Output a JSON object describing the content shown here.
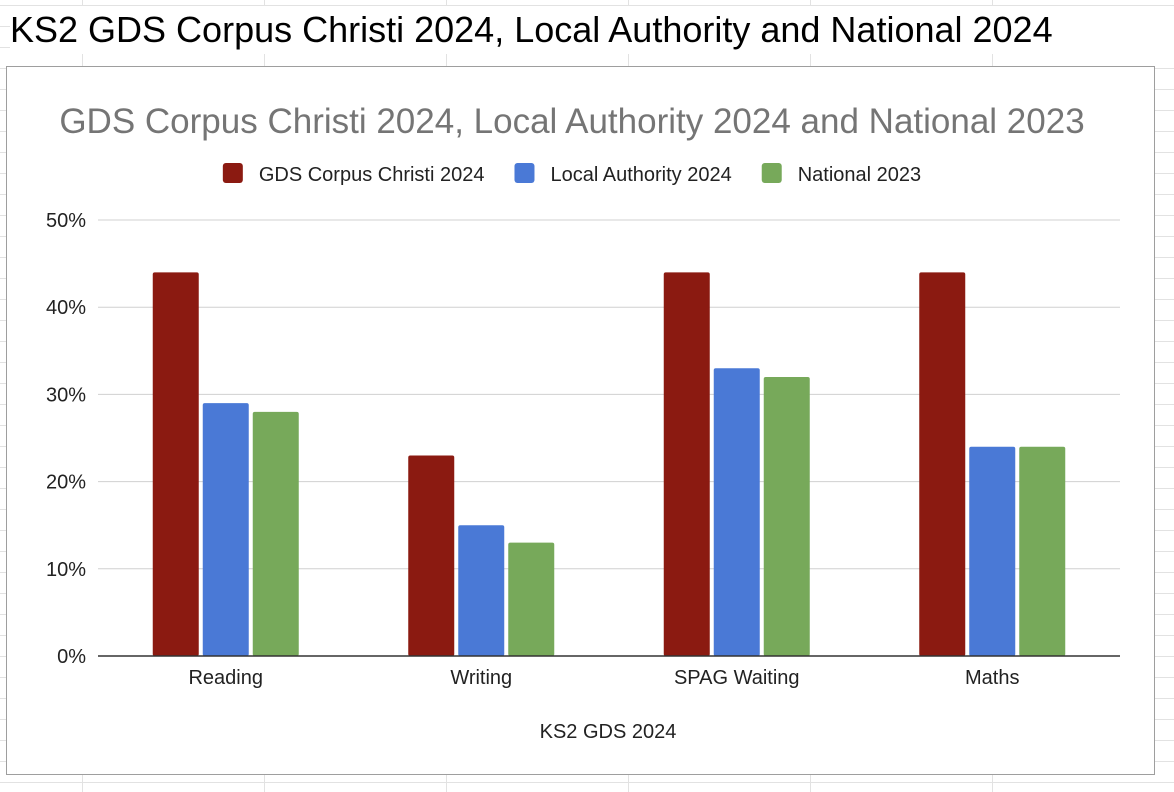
{
  "sheet": {
    "title": "KS2 GDS Corpus Christi 2024, Local Authority and National 2024"
  },
  "colors": {
    "series": [
      "#8b1a11",
      "#4a79d6",
      "#77a95a"
    ],
    "grid": "#d0d0d0",
    "axis": "#333333",
    "title": "#757575"
  },
  "chart_data": {
    "type": "bar",
    "title": "GDS Corpus Christi 2024, Local Authority 2024 and National 2023",
    "xlabel": "KS2 GDS 2024",
    "ylabel": "",
    "ylim": [
      0,
      50
    ],
    "y_ticks": [
      "0%",
      "10%",
      "20%",
      "30%",
      "40%",
      "50%"
    ],
    "grid": true,
    "legend_position": "top",
    "categories": [
      "Reading",
      "Writing",
      "SPAG Waiting",
      "Maths"
    ],
    "series": [
      {
        "name": "GDS Corpus Christi 2024",
        "values": [
          44,
          23,
          44,
          44
        ]
      },
      {
        "name": "Local Authority 2024",
        "values": [
          29,
          15,
          33,
          24
        ]
      },
      {
        "name": "National 2023",
        "values": [
          28,
          13,
          32,
          24
        ]
      }
    ]
  }
}
